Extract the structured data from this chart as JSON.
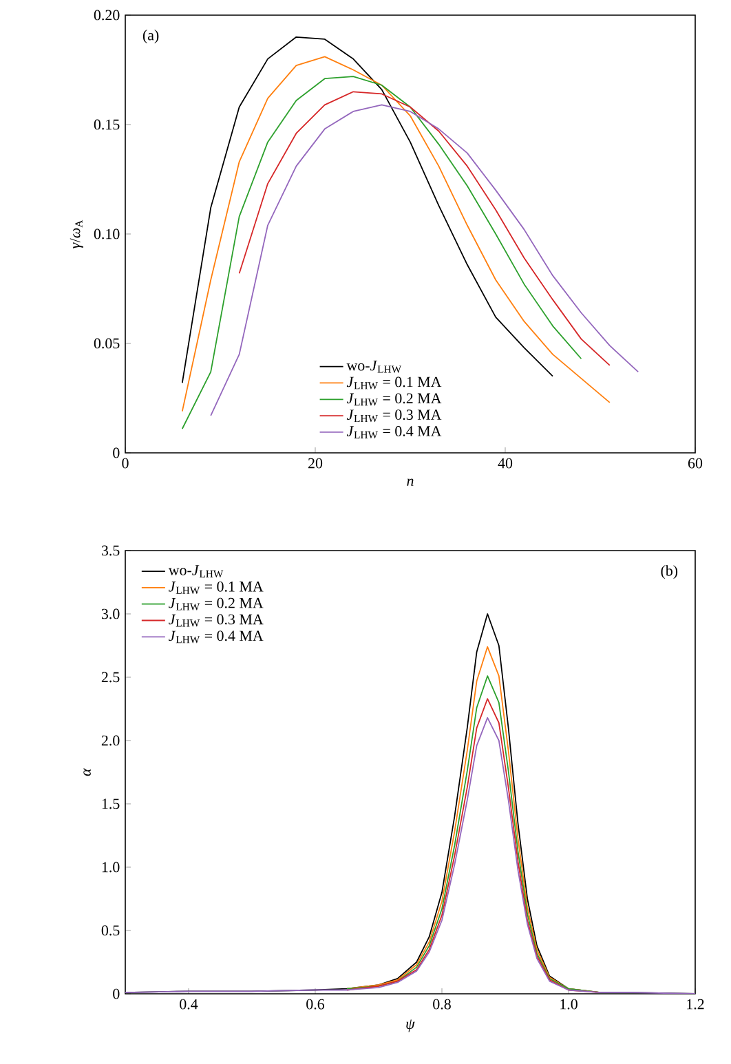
{
  "chart_data": [
    {
      "type": "line",
      "xlabel": "*n*",
      "ylabel": "*γ*/*ω*$_{A}$",
      "annotations": [
        "(a)"
      ],
      "legend": "bottom",
      "xlim": [
        0,
        60
      ],
      "xticks": [
        0,
        20,
        40,
        60
      ],
      "ylim": [
        0,
        0.2
      ],
      "yticks": [
        0,
        0.05,
        {
          "value": 0.1,
          "label": "0.10"
        },
        0.15,
        {
          "value": 0.2,
          "label": "0.20"
        }
      ],
      "series": [
        {
          "name": "wo-*J*$_{LHW}$",
          "color": "#000000",
          "x": [
            6,
            9,
            12,
            15,
            18,
            21,
            24,
            27,
            30,
            33,
            36,
            39,
            42,
            45
          ],
          "values": [
            0.032,
            0.112,
            0.158,
            0.18,
            0.19,
            0.189,
            0.18,
            0.166,
            0.142,
            0.113,
            0.086,
            0.062,
            0.048,
            0.035
          ]
        },
        {
          "name": "*J*$_{LHW}$ = 0.1 MA",
          "color": "#ff7f0e",
          "x": [
            6,
            9,
            12,
            15,
            18,
            21,
            24,
            27,
            30,
            33,
            36,
            39,
            42,
            45,
            48,
            51
          ],
          "values": [
            0.019,
            0.079,
            0.133,
            0.162,
            0.177,
            0.181,
            0.175,
            0.168,
            0.154,
            0.131,
            0.104,
            0.079,
            0.06,
            0.045,
            0.034,
            0.023
          ]
        },
        {
          "name": "*J*$_{LHW}$ = 0.2 MA",
          "color": "#2ca02c",
          "x": [
            6,
            9,
            12,
            15,
            18,
            21,
            24,
            27,
            30,
            33,
            36,
            39,
            42,
            45,
            48
          ],
          "values": [
            0.011,
            0.037,
            0.108,
            0.142,
            0.161,
            0.171,
            0.172,
            0.168,
            0.158,
            0.141,
            0.122,
            0.1,
            0.077,
            0.058,
            0.043
          ]
        },
        {
          "name": "*J*$_{LHW}$ = 0.3 MA",
          "color": "#d62728",
          "x": [
            12,
            15,
            18,
            21,
            24,
            27,
            30,
            33,
            36,
            39,
            42,
            45,
            48,
            51
          ],
          "values": [
            0.082,
            0.123,
            0.146,
            0.159,
            0.165,
            0.164,
            0.158,
            0.147,
            0.131,
            0.111,
            0.089,
            0.07,
            0.052,
            0.04
          ]
        },
        {
          "name": "*J*$_{LHW}$ = 0.4 MA",
          "color": "#9467bd",
          "x": [
            9,
            12,
            15,
            18,
            21,
            24,
            27,
            30,
            33,
            36,
            39,
            42,
            45,
            48,
            51,
            54
          ],
          "values": [
            0.017,
            0.045,
            0.104,
            0.131,
            0.148,
            0.156,
            0.159,
            0.156,
            0.148,
            0.137,
            0.12,
            0.102,
            0.081,
            0.064,
            0.049,
            0.037
          ]
        }
      ]
    },
    {
      "type": "line",
      "xlabel": "*ψ*",
      "ylabel": "*α*",
      "annotations": [
        "(b)"
      ],
      "legend": "top left",
      "xlim": [
        0.3,
        1.2
      ],
      "xticks": [
        0.4,
        0.6,
        0.8,
        {
          "value": 1.0,
          "label": "1.0"
        },
        1.2
      ],
      "ylim": [
        0,
        3.5
      ],
      "yticks": [
        0,
        0.5,
        {
          "value": 1.0,
          "label": "1.0"
        },
        1.5,
        {
          "value": 2.0,
          "label": "2.0"
        },
        2.5,
        {
          "value": 3.0,
          "label": "3.0"
        },
        3.5
      ],
      "series": [
        {
          "name": "wo-*J*$_{LHW}$",
          "color": "#000000",
          "x": [
            0.3,
            0.4,
            0.5,
            0.6,
            0.65,
            0.7,
            0.73,
            0.76,
            0.78,
            0.8,
            0.82,
            0.84,
            0.855,
            0.872,
            0.89,
            0.905,
            0.92,
            0.935,
            0.95,
            0.97,
            1.0,
            1.05,
            1.1,
            1.2
          ],
          "values": [
            0.01,
            0.02,
            0.02,
            0.03,
            0.04,
            0.07,
            0.12,
            0.25,
            0.45,
            0.8,
            1.4,
            2.1,
            2.7,
            3.0,
            2.75,
            2.1,
            1.35,
            0.75,
            0.38,
            0.14,
            0.04,
            0.01,
            0.01,
            0.0
          ]
        },
        {
          "name": "*J*$_{LHW}$ = 0.1 MA",
          "color": "#ff7f0e",
          "x": [
            0.65,
            0.7,
            0.73,
            0.76,
            0.78,
            0.8,
            0.82,
            0.84,
            0.855,
            0.872,
            0.89,
            0.905,
            0.92,
            0.935,
            0.95,
            0.97,
            1.0,
            1.05
          ],
          "values": [
            0.04,
            0.07,
            0.11,
            0.23,
            0.41,
            0.73,
            1.28,
            1.92,
            2.47,
            2.74,
            2.51,
            1.92,
            1.23,
            0.68,
            0.35,
            0.13,
            0.04,
            0.01
          ]
        },
        {
          "name": "*J*$_{LHW}$ = 0.2 MA",
          "color": "#2ca02c",
          "x": [
            0.65,
            0.7,
            0.73,
            0.76,
            0.78,
            0.8,
            0.82,
            0.84,
            0.855,
            0.872,
            0.89,
            0.905,
            0.92,
            0.935,
            0.95,
            0.97,
            1.0,
            1.05
          ],
          "values": [
            0.04,
            0.06,
            0.1,
            0.21,
            0.38,
            0.67,
            1.17,
            1.76,
            2.26,
            2.51,
            2.3,
            1.76,
            1.13,
            0.63,
            0.32,
            0.12,
            0.04,
            0.01
          ]
        },
        {
          "name": "*J*$_{LHW}$ = 0.3 MA",
          "color": "#d62728",
          "x": [
            0.65,
            0.7,
            0.73,
            0.76,
            0.78,
            0.8,
            0.82,
            0.84,
            0.855,
            0.872,
            0.89,
            0.905,
            0.92,
            0.935,
            0.95,
            0.97,
            1.0,
            1.05
          ],
          "values": [
            0.03,
            0.06,
            0.1,
            0.19,
            0.35,
            0.62,
            1.09,
            1.63,
            2.1,
            2.33,
            2.14,
            1.63,
            1.05,
            0.58,
            0.3,
            0.11,
            0.03,
            0.01
          ]
        },
        {
          "name": "*J*$_{LHW}$ = 0.4 MA",
          "color": "#9467bd",
          "x": [
            0.3,
            0.4,
            0.5,
            0.6,
            0.65,
            0.7,
            0.73,
            0.76,
            0.78,
            0.8,
            0.82,
            0.84,
            0.855,
            0.872,
            0.89,
            0.905,
            0.92,
            0.935,
            0.95,
            0.97,
            1.0,
            1.05,
            1.1,
            1.2
          ],
          "values": [
            0.01,
            0.02,
            0.02,
            0.03,
            0.03,
            0.05,
            0.09,
            0.18,
            0.33,
            0.58,
            1.02,
            1.53,
            1.96,
            2.18,
            2.0,
            1.53,
            0.98,
            0.55,
            0.28,
            0.1,
            0.03,
            0.01,
            0.01,
            0.0
          ]
        }
      ]
    }
  ]
}
